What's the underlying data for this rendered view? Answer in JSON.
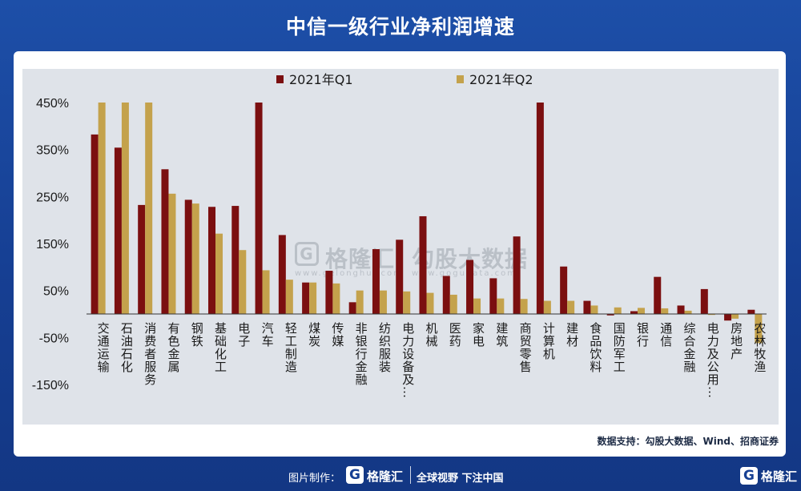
{
  "title": "中信一级行业净利润增速",
  "source": "数据支持：勾股大数据、Wind、招商证券",
  "watermark": {
    "mark": "G",
    "brand": "格隆汇",
    "brand_url": "www.gelonghui.com",
    "product": "勾股大数据",
    "product_url": "www.gogudata.com"
  },
  "footer": {
    "label": "图片制作：",
    "brand": "格隆汇",
    "slogan": "全球视野 下注中国",
    "logo": "G",
    "corner_brand": "格隆汇"
  },
  "colors": {
    "q1": "#7b0f10",
    "q2": "#c4a24c",
    "background": "#163f93"
  },
  "chart_data": {
    "type": "bar",
    "categories": [
      "交通运输",
      "石油石化",
      "消费者服务",
      "有色金属",
      "钢铁",
      "基础化工",
      "电子",
      "汽车",
      "轻工制造",
      "煤炭",
      "传媒",
      "非银行金融",
      "纺织服装",
      "电力设备及…",
      "机械",
      "医药",
      "家电",
      "建筑",
      "商贸零售",
      "计算机",
      "建材",
      "食品饮料",
      "国防军工",
      "银行",
      "通信",
      "综合金融",
      "电力及公用…",
      "房地产",
      "农林牧渔"
    ],
    "series": [
      {
        "name": "2021年Q1",
        "values": [
          382,
          354,
          232,
          308,
          243,
          228,
          230,
          450,
          168,
          67,
          92,
          25,
          138,
          158,
          208,
          81,
          115,
          76,
          165,
          450,
          101,
          28,
          -3,
          6,
          79,
          18,
          53,
          -14,
          9
        ]
      },
      {
        "name": "2021年Q2",
        "values": [
          450,
          450,
          450,
          256,
          235,
          171,
          136,
          93,
          73,
          67,
          65,
          50,
          50,
          48,
          45,
          41,
          33,
          33,
          32,
          28,
          28,
          18,
          14,
          13,
          12,
          7,
          -2,
          -10,
          -62
        ]
      }
    ],
    "yticks": [
      "450%",
      "350%",
      "250%",
      "150%",
      "50%",
      "-50%",
      "-150%"
    ],
    "ylim": [
      -150,
      450
    ],
    "grid": false,
    "legend": "top-center"
  }
}
